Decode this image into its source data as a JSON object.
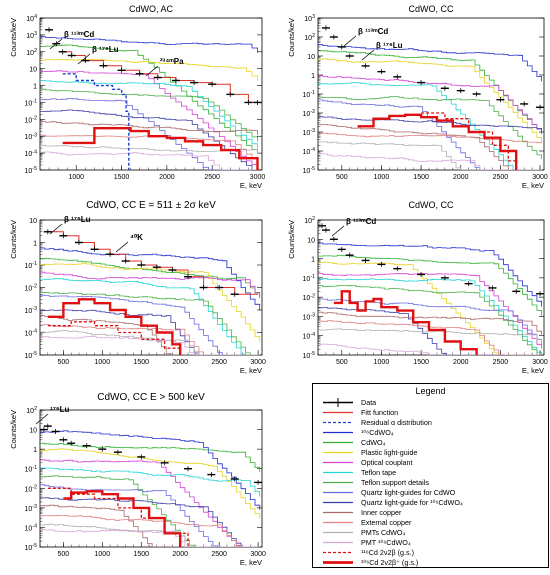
{
  "panels": [
    {
      "id": "p1",
      "title": "CdWO, AC",
      "title_sup": "106",
      "title_sub": "4",
      "ylabel": "Counts/keV",
      "xlabel": "E, keV",
      "x_ticks": [
        1000,
        1500,
        2000,
        2500,
        3000
      ],
      "y_ticks": [
        "10^-5",
        "10^-4",
        "10^-3",
        "10^-2",
        "10^-1",
        "1",
        "10",
        "10^2",
        "10^3",
        "10^4"
      ],
      "annotations": [
        {
          "text": "β ¹¹³ᵐCd"
        },
        {
          "text": "β ¹⁷⁶Lu"
        },
        {
          "text": "²³⁴ᵐPa"
        }
      ]
    },
    {
      "id": "p2",
      "title": "CdWO, CC",
      "title_sup": "106",
      "title_sub": "4",
      "ylabel": "Counts/keV",
      "xlabel": "E, keV",
      "x_ticks": [
        500,
        1000,
        1500,
        2000,
        2500,
        3000
      ],
      "y_ticks": [
        "10^-5",
        "10^-4",
        "10^-3",
        "10^-2",
        "10^-1",
        "1",
        "10",
        "10^2",
        "10^3"
      ],
      "annotations": [
        {
          "text": "β ¹¹³ᵐCd"
        },
        {
          "text": "β ¹⁷⁶Lu"
        }
      ]
    },
    {
      "id": "p3",
      "title": "CdWO, CC E = 511 ± 2σ keV",
      "title_sup": "106",
      "title_sub": "4",
      "ylabel": "Counts/keV",
      "xlabel": "E, keV",
      "x_ticks": [
        500,
        1000,
        1500,
        2000,
        2500,
        3000
      ],
      "y_ticks": [
        "10^-5",
        "10^-4",
        "10^-3",
        "10^-2",
        "10^-1",
        "1",
        "10"
      ],
      "annotations": [
        {
          "text": "β ¹⁷⁶Lu"
        },
        {
          "text": "⁴⁰K"
        }
      ]
    },
    {
      "id": "p4",
      "title": "CdWO, CC",
      "title_sub": "4",
      "ylabel": "Counts/keV",
      "xlabel": "E, keV",
      "x_ticks": [
        500,
        1000,
        1500,
        2000,
        2500,
        3000
      ],
      "y_ticks": [
        "10^-5",
        "10^-4",
        "10^-3",
        "10^-2",
        "10^-1",
        "1",
        "10",
        "10^2"
      ],
      "annotations": [
        {
          "text": "β ¹¹³ᵐCd"
        }
      ]
    },
    {
      "id": "p5",
      "title": "CdWO, CC E > 500 keV",
      "title_sup": "106",
      "title_sub": "4",
      "ylabel": "Counts/keV",
      "xlabel": "E, keV",
      "x_ticks": [
        500,
        1000,
        1500,
        2000,
        2500,
        3000
      ],
      "y_ticks": [
        "10^-5",
        "10^-4",
        "10^-3",
        "10^-2",
        "10^-1",
        "1",
        "10",
        "10^2"
      ],
      "annotations": [
        {
          "text": "¹⁷⁶Lu"
        }
      ]
    }
  ],
  "chart_data": [
    {
      "type": "line",
      "yscale": "log",
      "title": "106CdWO4, AC",
      "xlabel": "E, keV",
      "ylabel": "Counts/keV",
      "xlim": [
        600,
        3050
      ],
      "ylim": [
        1e-05,
        10000.0
      ],
      "series": [
        {
          "name": "Data",
          "x": [
            700,
            780,
            850,
            950,
            1100,
            1300,
            1500,
            1700,
            1900,
            2100,
            2300,
            2500,
            2700,
            2900,
            3000
          ],
          "values": [
            2000,
            300,
            100,
            60,
            30,
            15,
            8,
            5,
            3,
            2,
            1.5,
            1.2,
            0.3,
            0.1,
            0.1
          ]
        },
        {
          "name": "Fitt function",
          "x": [
            850,
            950,
            1100,
            1300,
            1500,
            1700,
            1900,
            2100,
            2300,
            2500,
            2700,
            2900,
            3000
          ],
          "values": [
            100,
            60,
            30,
            15,
            8,
            5,
            3,
            2,
            1.5,
            1.2,
            0.3,
            0.1,
            0.1
          ]
        },
        {
          "name": "Residual α distribution",
          "x": [
            850,
            1000,
            1200,
            1400,
            1500,
            1550,
            1580
          ],
          "values": [
            5,
            2,
            1,
            0.6,
            0.3,
            0.03,
            1e-05
          ]
        },
        {
          "name": "106Cd 2ν2β+ (g.s.)",
          "x": [
            850,
            1000,
            1200,
            1400,
            1600,
            1800,
            2000,
            2200,
            2400,
            2600,
            2800,
            3000
          ],
          "values": [
            0.0004,
            0.0004,
            0.003,
            0.003,
            0.002,
            0.001,
            0.0008,
            0.0005,
            0.0003,
            0.00015,
            5e-05,
            1e-05
          ]
        }
      ]
    },
    {
      "type": "line",
      "yscale": "log",
      "title": "106CdWO4, CC",
      "xlabel": "E, keV",
      "ylabel": "Counts/keV",
      "xlim": [
        200,
        3050
      ],
      "ylim": [
        1e-05,
        1000.0
      ],
      "series": [
        {
          "name": "Data",
          "x": [
            300,
            400,
            500,
            600,
            800,
            1000,
            1200,
            1500,
            1800,
            2000,
            2200,
            2500,
            2800,
            3000
          ],
          "values": [
            300,
            100,
            30,
            10,
            3,
            1.5,
            0.8,
            0.4,
            0.2,
            0.15,
            0.1,
            0.05,
            0.03,
            0.02
          ]
        },
        {
          "name": "106Cd 2ν2β+ (g.s.)",
          "x": [
            700,
            900,
            1100,
            1300,
            1500,
            1700,
            1900,
            2100,
            2300,
            2500,
            2700
          ],
          "values": [
            0.002,
            0.005,
            0.007,
            0.008,
            0.006,
            0.004,
            0.002,
            0.001,
            0.0005,
            0.0001,
            1e-05
          ]
        },
        {
          "name": "116Cd 2ν2β (g.s.)",
          "x": [
            1500,
            1800,
            2100,
            2400,
            2600,
            2700
          ],
          "values": [
            0.01,
            0.005,
            0.001,
            0.0002,
            3e-05,
            1e-05
          ]
        }
      ]
    },
    {
      "type": "line",
      "yscale": "log",
      "title": "106CdWO4, CC E_dep^nat = 511 ± 2σ keV",
      "xlabel": "E, keV",
      "ylabel": "Counts/keV",
      "xlim": [
        200,
        3050
      ],
      "ylim": [
        1e-05,
        10
      ],
      "series": [
        {
          "name": "Data",
          "x": [
            300,
            500,
            700,
            900,
            1100,
            1300,
            1500,
            1700,
            1900,
            2100,
            2300,
            2500,
            2700
          ],
          "values": [
            3,
            2,
            1,
            0.5,
            0.3,
            0.15,
            0.1,
            0.08,
            0.06,
            0.03,
            0.01,
            0.01,
            0.005
          ]
        },
        {
          "name": "Fitt function",
          "x": [
            300,
            500,
            700,
            900,
            1100,
            1300,
            1500,
            1700,
            1900,
            2100,
            2300,
            2500,
            2700,
            3000
          ],
          "values": [
            3,
            2,
            1,
            0.5,
            0.3,
            0.15,
            0.1,
            0.08,
            0.06,
            0.03,
            0.01,
            0.01,
            0.005,
            0.005
          ]
        },
        {
          "name": "106Cd 2ν2β+ (g.s.)",
          "x": [
            300,
            500,
            700,
            900,
            1100,
            1300,
            1500,
            1700,
            1900,
            2000
          ],
          "values": [
            0.0005,
            0.002,
            0.003,
            0.002,
            0.001,
            0.0005,
            0.0002,
            0.0001,
            3e-05,
            1e-05
          ]
        },
        {
          "name": "116Cd 2ν2β (g.s.)",
          "x": [
            300,
            600,
            900,
            1200,
            1500,
            1800,
            2000
          ],
          "values": [
            0.0002,
            0.0003,
            0.0002,
            0.0001,
            5e-05,
            2e-05,
            1e-05
          ]
        }
      ]
    },
    {
      "type": "line",
      "yscale": "log",
      "title": "CdWO4, CC",
      "xlabel": "E, keV",
      "ylabel": "Counts/keV",
      "xlim": [
        200,
        3050
      ],
      "ylim": [
        1e-05,
        100.0
      ],
      "series": [
        {
          "name": "Data",
          "x": [
            250,
            300,
            400,
            500,
            600,
            800,
            1000,
            1200,
            1500,
            1800,
            2100,
            2400,
            2700,
            3000
          ],
          "values": [
            50,
            30,
            10,
            3,
            1.5,
            0.8,
            0.5,
            0.3,
            0.15,
            0.1,
            0.05,
            0.03,
            0.02,
            0.015
          ]
        },
        {
          "name": "106Cd 2ν2β+ (g.s.)",
          "x": [
            400,
            500,
            600,
            700,
            800,
            900,
            1000,
            1200,
            1400,
            1600,
            1800,
            2000,
            2200
          ],
          "values": [
            0.005,
            0.02,
            0.005,
            0.002,
            0.006,
            0.008,
            0.003,
            0.002,
            0.0005,
            0.0002,
            5e-05,
            2e-05,
            1e-05
          ]
        }
      ]
    },
    {
      "type": "line",
      "yscale": "log",
      "title": "CdWO4, CC E_dep^106 > 500 keV",
      "xlabel": "E, keV",
      "ylabel": "Counts/keV",
      "xlim": [
        200,
        3050
      ],
      "ylim": [
        1e-05,
        100.0
      ],
      "series": [
        {
          "name": "Data",
          "x": [
            250,
            300,
            400,
            500,
            600,
            800,
            1000,
            1200,
            1500,
            1800,
            2100,
            2400,
            2700,
            3000
          ],
          "values": [
            10,
            15,
            8,
            3,
            2,
            1.5,
            1,
            0.7,
            0.4,
            0.2,
            0.1,
            0.05,
            0.03,
            0.02
          ]
        },
        {
          "name": "106Cd 2ν2β+ (g.s.)",
          "x": [
            500,
            600,
            800,
            1000,
            1200,
            1400,
            1600,
            1800,
            2000
          ],
          "values": [
            0.003,
            0.006,
            0.007,
            0.005,
            0.003,
            0.001,
            0.0003,
            5e-05,
            1e-05
          ]
        },
        {
          "name": "116Cd 2ν2β (g.s.)",
          "x": [
            300,
            600,
            900,
            1200,
            1500,
            1800,
            2100
          ],
          "values": [
            0.01,
            0.005,
            0.003,
            0.001,
            0.0003,
            5e-05,
            1e-05
          ]
        }
      ]
    }
  ],
  "legend": {
    "title": "Legend",
    "items": [
      {
        "label": "Data",
        "color": "#000000",
        "style": "data"
      },
      {
        "label": "Fitt function",
        "color": "#e0302a",
        "style": "solid"
      },
      {
        "label": "Residual α distribution",
        "color": "#1f3fcf",
        "style": "dashed"
      },
      {
        "label": "¹⁰⁶CdWO₄",
        "color": "#1f2fd0",
        "style": "solid"
      },
      {
        "label": "CdWO₄",
        "color": "#2fb02f",
        "style": "solid"
      },
      {
        "label": "Plastic light-guide",
        "color": "#e8d21a",
        "style": "solid"
      },
      {
        "label": "Optical couplant",
        "color": "#d43fd4",
        "style": "solid"
      },
      {
        "label": "Teflon tape",
        "color": "#22d4d4",
        "style": "solid"
      },
      {
        "label": "Teflon support details",
        "color": "#49b049",
        "style": "solid"
      },
      {
        "label": "Quartz light-guides for CdWO",
        "color": "#6a6ae0",
        "style": "solid"
      },
      {
        "label": "Quartz light-guide for ¹⁰⁶CdWO₄",
        "color": "#3a3aa8",
        "style": "solid"
      },
      {
        "label": "Inner copper",
        "color": "#a86a6a",
        "style": "solid"
      },
      {
        "label": "External copper",
        "color": "#e08080",
        "style": "solid"
      },
      {
        "label": "PMTs CdWO₄",
        "color": "#b0b0b0",
        "style": "solid"
      },
      {
        "label": "PMT ¹⁰⁶CdWO₄",
        "color": "#d8a8d8",
        "style": "solid"
      },
      {
        "label": "¹¹⁶Cd 2ν2β (g.s.)",
        "color": "#e01010",
        "style": "dashed"
      },
      {
        "label": "¹⁰⁶Cd 2ν2β⁺ (g.s.)",
        "color": "#e01010",
        "style": "thick"
      }
    ]
  }
}
